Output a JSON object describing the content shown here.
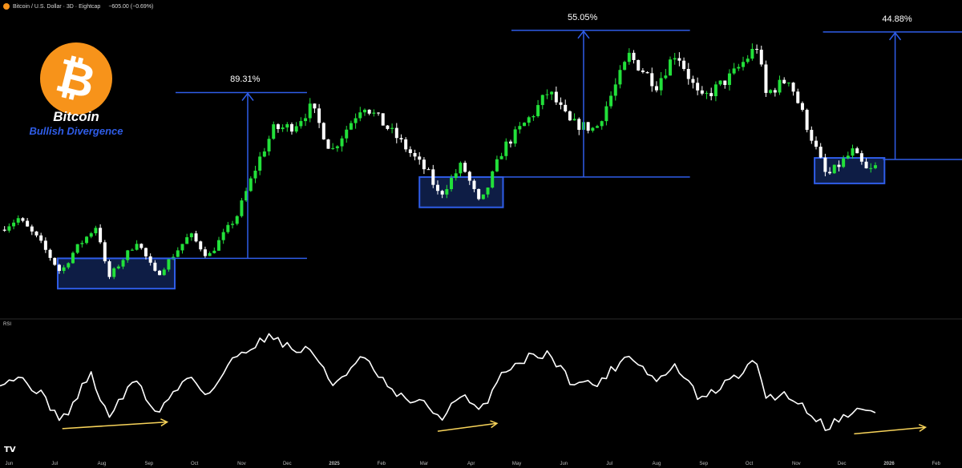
{
  "header": {
    "symbol": "Bitcoin / U.S. Dollar · 3D · Eightcap",
    "change": "−605.00 (−0.69%)"
  },
  "branding": {
    "logo_symbol": "₿",
    "logo_color": "#f7931a",
    "title": "Bitcoin",
    "subtitle": "Bullish Divergence",
    "subtitle_color": "#2f5de8"
  },
  "indicator": {
    "label": "RSI"
  },
  "platform_logo": "TV",
  "colors": {
    "up": "#22e03a",
    "down": "#ffffff",
    "zone": "#2f5de8",
    "zone_fill": "#0e1d45",
    "arrow": "#f7d35a"
  },
  "chart_data": [
    {
      "type": "candlestick",
      "title": "",
      "x_ticks": [
        "Jun",
        "Jul",
        "Aug",
        "Sep",
        "Oct",
        "Nov",
        "Dec",
        "2025",
        "Feb",
        "Mar",
        "Apr",
        "May",
        "Jun",
        "Jul",
        "Aug",
        "Sep",
        "Oct",
        "Nov",
        "Dec",
        "2026",
        "Feb"
      ],
      "x_range": [
        "2024-05-26",
        "2026-02-18"
      ],
      "grid": false,
      "price_path": [
        [
          "2024-05-26",
          67500
        ],
        [
          "2024-06-07",
          71000
        ],
        [
          "2024-06-20",
          64500
        ],
        [
          "2024-07-05",
          54000
        ],
        [
          "2024-07-14",
          61000
        ],
        [
          "2024-07-29",
          69000
        ],
        [
          "2024-08-05",
          52000
        ],
        [
          "2024-08-24",
          64000
        ],
        [
          "2024-09-06",
          53000
        ],
        [
          "2024-09-28",
          66000
        ],
        [
          "2024-10-10",
          59000
        ],
        [
          "2024-10-29",
          72000
        ],
        [
          "2024-11-12",
          89000
        ],
        [
          "2024-11-22",
          99000
        ],
        [
          "2024-12-05",
          100000
        ],
        [
          "2024-12-17",
          106000
        ],
        [
          "2024-12-30",
          92000
        ],
        [
          "2025-01-20",
          107000
        ],
        [
          "2025-02-10",
          97000
        ],
        [
          "2025-03-04",
          85000
        ],
        [
          "2025-03-11",
          78000
        ],
        [
          "2025-03-26",
          88000
        ],
        [
          "2025-04-07",
          75000
        ],
        [
          "2025-04-22",
          93000
        ],
        [
          "2025-05-12",
          104000
        ],
        [
          "2025-05-22",
          111000
        ],
        [
          "2025-06-05",
          101000
        ],
        [
          "2025-06-22",
          99000
        ],
        [
          "2025-07-14",
          122000
        ],
        [
          "2025-08-01",
          113000
        ],
        [
          "2025-08-14",
          123500
        ],
        [
          "2025-08-30",
          108000
        ],
        [
          "2025-09-20",
          116000
        ],
        [
          "2025-10-06",
          125000
        ],
        [
          "2025-10-12",
          110000
        ],
        [
          "2025-10-27",
          115000
        ],
        [
          "2025-11-21",
          84000
        ],
        [
          "2025-12-08",
          92000
        ],
        [
          "2025-12-18",
          85500
        ],
        [
          "2025-12-24",
          87500
        ]
      ],
      "zones": [
        {
          "from": "2024-07-03",
          "to": "2024-09-18",
          "low": 49000,
          "high": 58500
        },
        {
          "from": "2025-02-26",
          "to": "2025-04-22",
          "low": 74500,
          "high": 84000
        },
        {
          "from": "2025-11-13",
          "to": "2025-12-29",
          "low": 82000,
          "high": 90000
        }
      ],
      "measures": [
        {
          "label": "89.31%",
          "base_price": 58500,
          "top_price": 110500,
          "line_from": "2024-09-04",
          "line_to": "2024-12-14",
          "arrow_x": "2024-11-05",
          "label_x": "2024-11-04"
        },
        {
          "label": "55.05%",
          "base_price": 84000,
          "top_price": 130000,
          "line_from": "2025-04-22",
          "line_to": "2025-08-23",
          "arrow_x": "2025-06-14",
          "label_x": "2025-06-14"
        },
        {
          "label": "44.88%",
          "base_price": 89500,
          "top_price": 129500,
          "line_from": "2025-12-28",
          "line_to": "2026-02-18",
          "arrow_x": "2026-01-05",
          "label_x": "2026-01-07"
        }
      ],
      "price_range": [
        40000,
        135000
      ]
    },
    {
      "type": "line",
      "title": "RSI",
      "x_range": [
        "2024-05-26",
        "2026-02-18"
      ],
      "ylim": [
        0,
        100
      ],
      "grid": false,
      "rsi_path": [
        [
          "2024-05-26",
          55
        ],
        [
          "2024-06-07",
          58
        ],
        [
          "2024-06-20",
          48
        ],
        [
          "2024-07-03",
          28
        ],
        [
          "2024-07-10",
          30
        ],
        [
          "2024-07-24",
          62
        ],
        [
          "2024-08-05",
          28
        ],
        [
          "2024-08-24",
          57
        ],
        [
          "2024-09-05",
          30
        ],
        [
          "2024-09-28",
          60
        ],
        [
          "2024-10-10",
          44
        ],
        [
          "2024-10-28",
          74
        ],
        [
          "2024-11-12",
          85
        ],
        [
          "2024-11-22",
          90
        ],
        [
          "2024-12-05",
          78
        ],
        [
          "2024-12-17",
          80
        ],
        [
          "2024-12-30",
          52
        ],
        [
          "2025-01-20",
          73
        ],
        [
          "2025-02-10",
          44
        ],
        [
          "2025-03-05",
          36
        ],
        [
          "2025-03-11",
          26
        ],
        [
          "2025-03-26",
          44
        ],
        [
          "2025-04-07",
          31
        ],
        [
          "2025-04-22",
          63
        ],
        [
          "2025-05-12",
          75
        ],
        [
          "2025-05-22",
          76
        ],
        [
          "2025-06-05",
          56
        ],
        [
          "2025-06-22",
          52
        ],
        [
          "2025-07-14",
          76
        ],
        [
          "2025-08-01",
          55
        ],
        [
          "2025-08-14",
          67
        ],
        [
          "2025-08-30",
          40
        ],
        [
          "2025-09-20",
          57
        ],
        [
          "2025-10-06",
          70
        ],
        [
          "2025-10-12",
          43
        ],
        [
          "2025-10-27",
          45
        ],
        [
          "2025-11-21",
          20
        ],
        [
          "2025-12-08",
          33
        ],
        [
          "2025-12-18",
          32
        ],
        [
          "2025-12-24",
          30
        ]
      ],
      "divergence_arrows": [
        {
          "from": "2024-07-06",
          "to": "2024-09-13",
          "rsi_from": 19,
          "rsi_to": 24
        },
        {
          "from": "2025-03-10",
          "to": "2025-04-18",
          "rsi_from": 17,
          "rsi_to": 23
        },
        {
          "from": "2025-12-09",
          "to": "2026-01-25",
          "rsi_from": 15,
          "rsi_to": 20
        }
      ]
    }
  ]
}
